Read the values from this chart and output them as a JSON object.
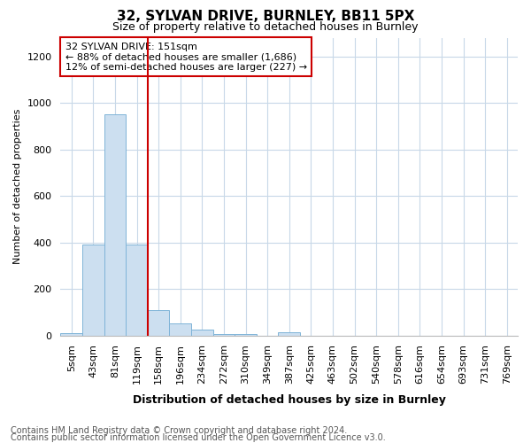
{
  "title": "32, SYLVAN DRIVE, BURNLEY, BB11 5PX",
  "subtitle": "Size of property relative to detached houses in Burnley",
  "xlabel": "Distribution of detached houses by size in Burnley",
  "ylabel": "Number of detached properties",
  "footnote1": "Contains HM Land Registry data © Crown copyright and database right 2024.",
  "footnote2": "Contains public sector information licensed under the Open Government Licence v3.0.",
  "annotation_line1": "32 SYLVAN DRIVE: 151sqm",
  "annotation_line2": "← 88% of detached houses are smaller (1,686)",
  "annotation_line3": "12% of semi-detached houses are larger (227) →",
  "bar_color": "#ccdff0",
  "bar_edge_color": "#7fb4d8",
  "vline_color": "#cc0000",
  "categories": [
    "5sqm",
    "43sqm",
    "81sqm",
    "119sqm",
    "158sqm",
    "196sqm",
    "234sqm",
    "272sqm",
    "310sqm",
    "349sqm",
    "387sqm",
    "425sqm",
    "463sqm",
    "502sqm",
    "540sqm",
    "578sqm",
    "616sqm",
    "654sqm",
    "693sqm",
    "731sqm",
    "769sqm"
  ],
  "values": [
    10,
    390,
    950,
    390,
    110,
    50,
    25,
    5,
    5,
    0,
    15,
    0,
    0,
    0,
    0,
    0,
    0,
    0,
    0,
    0,
    0
  ],
  "ylim": [
    0,
    1280
  ],
  "yticks": [
    0,
    200,
    400,
    600,
    800,
    1000,
    1200
  ],
  "vline_x": 3.5,
  "background_color": "#ffffff",
  "grid_color": "#c8d8e8",
  "title_fontsize": 11,
  "subtitle_fontsize": 9,
  "xlabel_fontsize": 9,
  "ylabel_fontsize": 8,
  "tick_fontsize": 8,
  "footnote_fontsize": 7,
  "annotation_fontsize": 8
}
